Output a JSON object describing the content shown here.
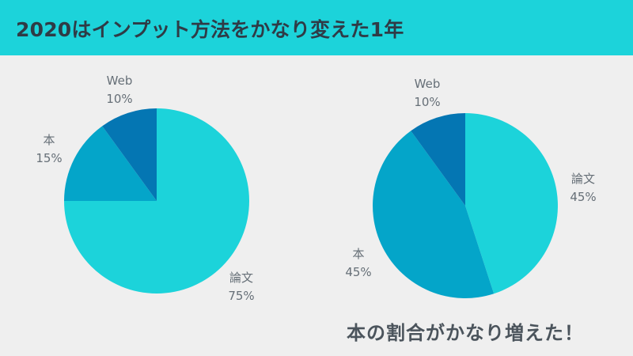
{
  "title": "2020はインプット方法をかなり変えた1年",
  "callout": "本の割合がかなり増えた！",
  "colors": {
    "header": "#1cd3da",
    "background": "#efefef",
    "slice_ronbun": "#1cd3da",
    "slice_hon": "#04a5c9",
    "slice_web": "#0476b3"
  },
  "chart_data": [
    {
      "type": "pie",
      "categories": [
        "論文",
        "本",
        "Web"
      ],
      "values": [
        75,
        15,
        10
      ],
      "labels": [
        "75%",
        "15%",
        "10%"
      ]
    },
    {
      "type": "pie",
      "categories": [
        "論文",
        "本",
        "Web"
      ],
      "values": [
        45,
        45,
        10
      ],
      "labels": [
        "45%",
        "45%",
        "10%"
      ]
    }
  ]
}
